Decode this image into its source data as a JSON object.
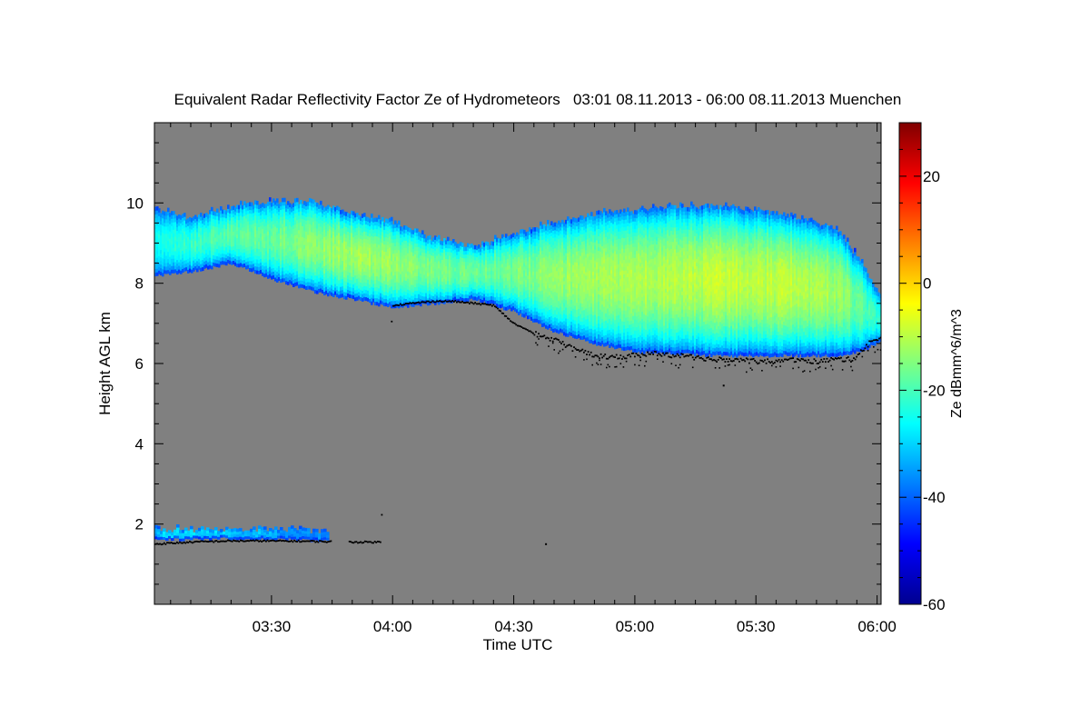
{
  "chart_data": {
    "type": "heatmap",
    "title": "Equivalent Radar Reflectivity Factor Ze of Hydrometeors   03:01 08.11.2013 - 06:00 08.11.2013 Muenchen",
    "xlabel": "Time UTC",
    "ylabel": "Height AGL km",
    "x_unit": "minutes after 03:00 UTC",
    "xlim": [
      1,
      181
    ],
    "ylim": [
      0,
      12
    ],
    "x_ticks": [
      {
        "value": 30,
        "label": "03:30"
      },
      {
        "value": 60,
        "label": "04:00"
      },
      {
        "value": 90,
        "label": "04:30"
      },
      {
        "value": 120,
        "label": "05:00"
      },
      {
        "value": 150,
        "label": "05:30"
      },
      {
        "value": 180,
        "label": "06:00"
      }
    ],
    "y_ticks": [
      2,
      4,
      6,
      8,
      10
    ],
    "colorbar": {
      "label": "Ze dBmm^6/m^3",
      "min": -60,
      "max": 30,
      "ticks": [
        -60,
        -40,
        -20,
        0,
        20
      ]
    },
    "background_color": "#808080",
    "upper_cloud_layer": {
      "time_min": [
        1,
        10,
        20,
        30,
        40,
        50,
        60,
        70,
        80,
        90,
        100,
        110,
        120,
        130,
        140,
        150,
        160,
        170,
        176,
        181
      ],
      "top_km": [
        9.8,
        9.6,
        9.9,
        10.0,
        10.0,
        9.7,
        9.5,
        9.1,
        8.9,
        9.2,
        9.5,
        9.7,
        9.8,
        9.9,
        9.9,
        9.8,
        9.6,
        9.3,
        8.5,
        7.6
      ],
      "base_km": [
        8.2,
        8.3,
        8.5,
        8.1,
        7.8,
        7.6,
        7.4,
        7.5,
        7.6,
        7.3,
        6.8,
        6.5,
        6.3,
        6.25,
        6.2,
        6.2,
        6.2,
        6.2,
        6.3,
        6.6
      ],
      "core_dbz": [
        -25,
        -22,
        -18,
        -17,
        -14,
        -12,
        -13,
        -16,
        -17,
        -16,
        -13,
        -12,
        -11,
        -10,
        -9,
        -9,
        -10,
        -12,
        -18,
        -24
      ]
    },
    "lower_cloud_layer": {
      "time_min": [
        1,
        5,
        10,
        15,
        20,
        25,
        30,
        35,
        40,
        44
      ],
      "top_km": [
        1.85,
        1.85,
        1.85,
        1.85,
        1.85,
        1.85,
        1.85,
        1.85,
        1.82,
        1.8
      ],
      "base_km": [
        1.6,
        1.62,
        1.62,
        1.64,
        1.64,
        1.63,
        1.63,
        1.62,
        1.6,
        1.6
      ],
      "core_dbz": [
        -30,
        -28,
        -29,
        -30,
        -31,
        -32,
        -33,
        -35,
        -36,
        -37
      ]
    },
    "cloud_base_points": {
      "time_min": [
        1,
        10,
        20,
        30,
        40,
        49,
        53,
        57,
        60,
        65,
        70,
        75,
        80,
        85,
        90,
        95,
        100,
        105,
        110,
        115,
        120,
        125,
        130,
        135,
        140,
        145,
        150,
        155,
        160,
        165,
        170,
        174,
        178,
        181
      ],
      "height_km": [
        1.5,
        1.55,
        1.58,
        1.58,
        1.57,
        1.55,
        1.55,
        1.55,
        7.45,
        7.5,
        7.55,
        7.55,
        7.5,
        7.45,
        7.0,
        6.75,
        6.6,
        6.35,
        6.2,
        6.15,
        6.2,
        6.25,
        6.2,
        6.15,
        6.1,
        6.1,
        6.05,
        6.05,
        6.1,
        6.05,
        6.1,
        6.1,
        6.5,
        6.6
      ]
    },
    "isolated_points": [
      {
        "time_min": 98,
        "height_km": 1.5
      },
      {
        "time_min": 142,
        "height_km": 5.45
      }
    ]
  }
}
